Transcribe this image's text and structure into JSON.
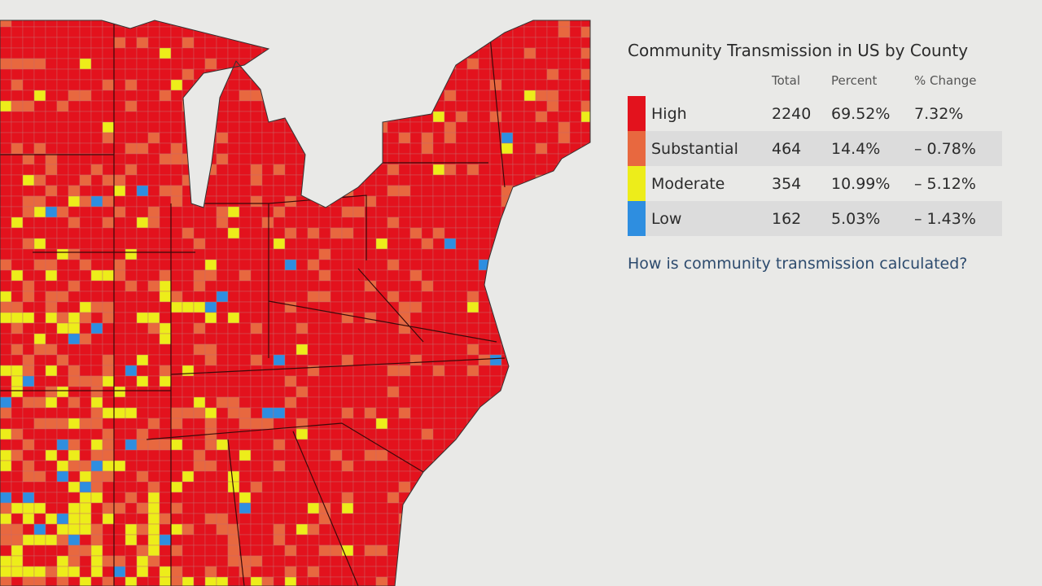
{
  "title": "Community Transmission in US by County",
  "table": {
    "headers": [
      "Total",
      "Percent",
      "% Change"
    ],
    "rows": [
      {
        "level": "High",
        "color": "#e3121d",
        "total": "2240",
        "percent": "69.52%",
        "change": "7.32%"
      },
      {
        "level": "Substantial",
        "color": "#e8683f",
        "total": "464",
        "percent": "14.4%",
        "change": "– 0.78%"
      },
      {
        "level": "Moderate",
        "color": "#eded1a",
        "total": "354",
        "percent": "10.99%",
        "change": "– 5.12%"
      },
      {
        "level": "Low",
        "color": "#2e8ee0",
        "total": "162",
        "percent": "5.03%",
        "change": "– 1.43%"
      }
    ]
  },
  "link": "How is community transmission calculated?"
}
